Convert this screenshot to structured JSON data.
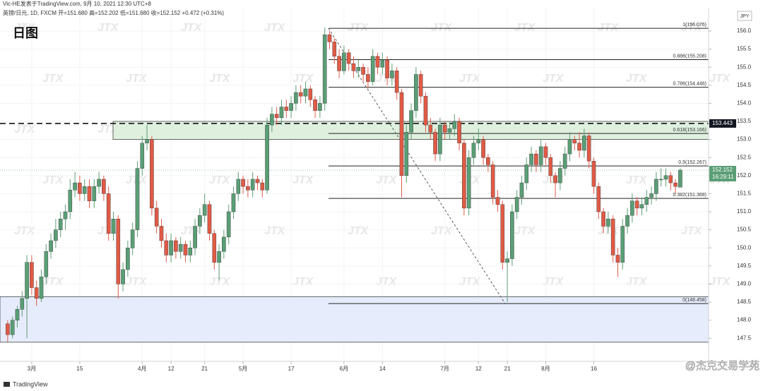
{
  "chart_data": {
    "type": "candlestick",
    "source": "Vic-HE发表于TradingView.com, 9月 10, 2021 12:30 UTC+8",
    "symbol_info": "英镑/日元, 1D, FXCM  开=151.680  高=152.202  低=151.680  收=152.152  +0.472 (+0.31%)",
    "title": "日图",
    "currency": "JPY",
    "watermark": "JTX",
    "brand": "TradingView",
    "signature": "@杰克交易学苑",
    "up_color": "#5a9e75",
    "down_color": "#e05a46",
    "grid": true,
    "ylim": [
      146.86,
      156.625
    ],
    "xlim": [
      -1.6,
      145.9
    ],
    "yticks": [
      {
        "value": 147.5,
        "label": "147.5"
      },
      {
        "value": 148,
        "label": "148.0"
      },
      {
        "value": 148.5,
        "label": "148.5"
      },
      {
        "value": 149,
        "label": "149.0"
      },
      {
        "value": 149.5,
        "label": "149.5"
      },
      {
        "value": 150,
        "label": "150.0"
      },
      {
        "value": 150.5,
        "label": "150.5"
      },
      {
        "value": 151,
        "label": "151.0"
      },
      {
        "value": 151.5,
        "label": "151.5"
      },
      {
        "value": 152,
        "label": "152.0"
      },
      {
        "value": 152.5,
        "label": "152.5"
      },
      {
        "value": 153,
        "label": "153.0"
      },
      {
        "value": 153.5,
        "label": "153.5"
      },
      {
        "value": 154,
        "label": "154.0"
      },
      {
        "value": 154.5,
        "label": "154.5"
      },
      {
        "value": 155,
        "label": "155.0"
      },
      {
        "value": 155.5,
        "label": "155.5"
      },
      {
        "value": 156,
        "label": "156.0"
      }
    ],
    "xticks": [
      {
        "value": 5,
        "label": "3月"
      },
      {
        "value": 15,
        "label": "15"
      },
      {
        "value": 28,
        "label": "4月"
      },
      {
        "value": 34,
        "label": "12"
      },
      {
        "value": 41,
        "label": "21"
      },
      {
        "value": 49,
        "label": "5月"
      },
      {
        "value": 59,
        "label": "17"
      },
      {
        "value": 70,
        "label": "6月"
      },
      {
        "value": 78,
        "label": "14"
      },
      {
        "value": 91,
        "label": "7月"
      },
      {
        "value": 98,
        "label": "12"
      },
      {
        "value": 104,
        "label": "21"
      },
      {
        "value": 112,
        "label": "8月"
      },
      {
        "value": 122,
        "label": "16"
      }
    ],
    "fib_levels": [
      {
        "value": 156.076,
        "label": "1(156.076)"
      },
      {
        "value": 155.208,
        "label": "0.886(155.208)"
      },
      {
        "value": 154.446,
        "label": "0.786(154.446)"
      },
      {
        "value": 153.166,
        "label": "0.618(153.166)"
      },
      {
        "value": 152.267,
        "label": "0.5(152.267)"
      },
      {
        "value": 151.368,
        "label": "0.382(151.368)"
      },
      {
        "value": 148.458,
        "label": "0(148.458)"
      }
    ],
    "dashed_level": 153.443,
    "last_price": 152.152,
    "countdown": "16:29:11",
    "zones": [
      {
        "top": 153.5,
        "bottom": 153.0,
        "color": "#dff0df"
      },
      {
        "top": 148.65,
        "bottom": 147.39,
        "color": "#e6ecfb"
      }
    ],
    "candles": [
      [
        147.9,
        148.0,
        147.4,
        147.6
      ],
      [
        147.6,
        148.1,
        147.5,
        148.0
      ],
      [
        148.0,
        148.4,
        147.8,
        148.3
      ],
      [
        148.3,
        148.8,
        148.1,
        148.6
      ],
      [
        148.6,
        149.8,
        147.5,
        149.6
      ],
      [
        149.6,
        149.8,
        148.7,
        148.9
      ],
      [
        148.9,
        149.1,
        148.4,
        148.6
      ],
      [
        148.6,
        149.4,
        148.5,
        149.2
      ],
      [
        149.2,
        150.1,
        149.0,
        149.9
      ],
      [
        149.9,
        150.4,
        149.7,
        150.2
      ],
      [
        150.2,
        150.8,
        150.0,
        150.5
      ],
      [
        150.5,
        151.0,
        150.3,
        150.8
      ],
      [
        150.8,
        151.2,
        150.5,
        151.0
      ],
      [
        151.0,
        151.9,
        150.8,
        151.6
      ],
      [
        151.6,
        152.1,
        151.4,
        151.8
      ],
      [
        151.8,
        152.0,
        151.3,
        151.5
      ],
      [
        151.5,
        151.9,
        151.3,
        151.7
      ],
      [
        151.7,
        151.9,
        151.1,
        151.3
      ],
      [
        151.3,
        151.9,
        151.1,
        151.7
      ],
      [
        151.7,
        152.1,
        151.5,
        151.9
      ],
      [
        151.9,
        152.0,
        151.3,
        151.5
      ],
      [
        151.5,
        151.7,
        150.2,
        150.4
      ],
      [
        150.4,
        151.0,
        150.2,
        150.8
      ],
      [
        150.8,
        150.9,
        148.6,
        149.0
      ],
      [
        149.0,
        149.6,
        148.8,
        149.4
      ],
      [
        149.4,
        150.2,
        149.2,
        150.0
      ],
      [
        150.0,
        150.7,
        149.8,
        150.5
      ],
      [
        150.5,
        152.4,
        150.3,
        152.2
      ],
      [
        152.2,
        153.1,
        152.0,
        152.9
      ],
      [
        152.9,
        153.4,
        152.7,
        153.0
      ],
      [
        153.0,
        153.1,
        150.9,
        151.1
      ],
      [
        151.1,
        151.3,
        150.4,
        150.6
      ],
      [
        150.6,
        150.8,
        150.0,
        150.2
      ],
      [
        150.2,
        150.4,
        149.6,
        149.8
      ],
      [
        149.8,
        150.4,
        149.6,
        150.2
      ],
      [
        150.2,
        150.3,
        149.7,
        149.9
      ],
      [
        149.9,
        150.3,
        149.7,
        150.1
      ],
      [
        150.1,
        150.2,
        149.6,
        149.8
      ],
      [
        149.8,
        150.2,
        149.6,
        150.0
      ],
      [
        150.0,
        150.8,
        149.8,
        150.6
      ],
      [
        150.6,
        151.1,
        150.4,
        150.9
      ],
      [
        150.9,
        151.5,
        150.7,
        151.2
      ],
      [
        151.2,
        151.3,
        150.2,
        150.4
      ],
      [
        150.4,
        150.5,
        149.4,
        149.6
      ],
      [
        149.6,
        150.1,
        149.1,
        149.9
      ],
      [
        149.9,
        150.5,
        149.7,
        150.3
      ],
      [
        150.3,
        151.2,
        150.1,
        151.0
      ],
      [
        151.0,
        151.7,
        150.8,
        151.5
      ],
      [
        151.5,
        152.1,
        151.3,
        151.9
      ],
      [
        151.9,
        152.0,
        151.5,
        151.7
      ],
      [
        151.7,
        151.9,
        151.4,
        151.6
      ],
      [
        151.6,
        152.1,
        151.4,
        151.9
      ],
      [
        151.9,
        152.0,
        151.6,
        151.8
      ],
      [
        151.8,
        151.9,
        151.4,
        151.6
      ],
      [
        151.6,
        153.6,
        151.5,
        153.4
      ],
      [
        153.4,
        153.9,
        153.2,
        153.7
      ],
      [
        153.7,
        153.9,
        153.4,
        153.6
      ],
      [
        153.6,
        154.1,
        153.4,
        153.9
      ],
      [
        153.9,
        154.1,
        153.6,
        153.8
      ],
      [
        153.8,
        154.2,
        153.6,
        154.0
      ],
      [
        154.0,
        154.5,
        153.8,
        154.3
      ],
      [
        154.3,
        154.5,
        154.0,
        154.2
      ],
      [
        154.2,
        154.6,
        154.0,
        154.4
      ],
      [
        154.4,
        154.5,
        153.9,
        154.1
      ],
      [
        154.1,
        154.2,
        153.6,
        153.8
      ],
      [
        153.8,
        154.2,
        153.6,
        154.0
      ],
      [
        154.0,
        156.1,
        153.8,
        155.9
      ],
      [
        155.9,
        156.0,
        155.5,
        155.7
      ],
      [
        155.7,
        155.8,
        155.1,
        155.3
      ],
      [
        155.3,
        155.5,
        154.7,
        154.9
      ],
      [
        154.9,
        155.6,
        154.8,
        155.4
      ],
      [
        155.4,
        155.5,
        154.9,
        155.1
      ],
      [
        155.1,
        155.3,
        154.7,
        154.9
      ],
      [
        154.9,
        155.2,
        154.7,
        155.0
      ],
      [
        155.0,
        155.1,
        154.6,
        154.8
      ],
      [
        154.8,
        155.0,
        154.4,
        154.6
      ],
      [
        154.6,
        155.5,
        154.5,
        155.3
      ],
      [
        155.3,
        155.4,
        154.8,
        155.0
      ],
      [
        155.0,
        155.4,
        154.8,
        155.2
      ],
      [
        155.2,
        155.3,
        154.5,
        154.7
      ],
      [
        154.7,
        155.1,
        154.5,
        154.9
      ],
      [
        154.9,
        155.0,
        154.1,
        154.3
      ],
      [
        154.3,
        154.4,
        151.4,
        152.0
      ],
      [
        152.0,
        153.4,
        151.8,
        153.2
      ],
      [
        153.2,
        154.0,
        153.0,
        153.8
      ],
      [
        153.8,
        155.0,
        153.6,
        154.8
      ],
      [
        154.8,
        154.9,
        154.0,
        154.2
      ],
      [
        154.2,
        154.3,
        153.2,
        153.4
      ],
      [
        153.4,
        153.6,
        153.0,
        153.2
      ],
      [
        153.2,
        153.3,
        152.4,
        152.6
      ],
      [
        152.6,
        153.6,
        152.4,
        153.4
      ],
      [
        153.4,
        153.5,
        153.0,
        153.2
      ],
      [
        153.2,
        153.5,
        153.0,
        153.3
      ],
      [
        153.3,
        153.7,
        153.1,
        153.5
      ],
      [
        153.5,
        153.6,
        152.7,
        152.9
      ],
      [
        152.9,
        153.0,
        150.9,
        151.1
      ],
      [
        151.1,
        152.7,
        150.9,
        152.5
      ],
      [
        152.5,
        153.1,
        152.3,
        152.9
      ],
      [
        152.9,
        153.3,
        152.7,
        153.0
      ],
      [
        153.0,
        153.1,
        152.3,
        152.5
      ],
      [
        152.5,
        152.6,
        152.1,
        152.3
      ],
      [
        152.3,
        152.4,
        151.2,
        151.4
      ],
      [
        151.4,
        151.6,
        151.0,
        151.2
      ],
      [
        151.2,
        151.3,
        149.4,
        149.6
      ],
      [
        149.6,
        149.9,
        148.5,
        149.7
      ],
      [
        149.7,
        151.2,
        149.5,
        151.0
      ],
      [
        151.0,
        151.6,
        150.8,
        151.4
      ],
      [
        151.4,
        152.0,
        151.2,
        151.8
      ],
      [
        151.8,
        152.5,
        151.6,
        152.3
      ],
      [
        152.3,
        152.8,
        152.1,
        152.6
      ],
      [
        152.6,
        152.7,
        152.1,
        152.3
      ],
      [
        152.3,
        153.0,
        152.1,
        152.8
      ],
      [
        152.8,
        152.9,
        152.3,
        152.5
      ],
      [
        152.5,
        152.6,
        151.8,
        152.0
      ],
      [
        152.0,
        152.1,
        151.4,
        151.8
      ],
      [
        151.8,
        152.4,
        151.6,
        152.2
      ],
      [
        152.2,
        152.8,
        152.0,
        152.6
      ],
      [
        152.6,
        153.2,
        152.4,
        153.0
      ],
      [
        153.0,
        153.1,
        152.7,
        152.9
      ],
      [
        152.9,
        153.2,
        152.5,
        152.7
      ],
      [
        152.7,
        153.3,
        152.5,
        153.1
      ],
      [
        153.1,
        153.2,
        152.2,
        152.4
      ],
      [
        152.4,
        152.5,
        151.5,
        151.7
      ],
      [
        151.7,
        151.8,
        150.8,
        151.0
      ],
      [
        151.0,
        151.1,
        150.4,
        150.6
      ],
      [
        150.6,
        151.0,
        150.4,
        150.8
      ],
      [
        150.8,
        150.9,
        149.6,
        149.8
      ],
      [
        149.8,
        150.0,
        149.2,
        149.6
      ],
      [
        149.6,
        150.8,
        149.4,
        150.6
      ],
      [
        150.6,
        151.1,
        150.4,
        150.9
      ],
      [
        150.9,
        151.5,
        150.7,
        151.3
      ],
      [
        151.3,
        151.4,
        150.9,
        151.1
      ],
      [
        151.1,
        151.4,
        150.9,
        151.2
      ],
      [
        151.2,
        151.6,
        151.0,
        151.4
      ],
      [
        151.4,
        151.7,
        151.2,
        151.5
      ],
      [
        151.5,
        152.1,
        151.3,
        151.9
      ],
      [
        151.9,
        152.2,
        151.7,
        151.9
      ],
      [
        151.9,
        152.2,
        151.7,
        152.0
      ],
      [
        152.0,
        152.1,
        151.6,
        151.8
      ],
      [
        151.8,
        151.9,
        151.5,
        151.7
      ],
      [
        151.68,
        152.202,
        151.68,
        152.152
      ]
    ]
  }
}
